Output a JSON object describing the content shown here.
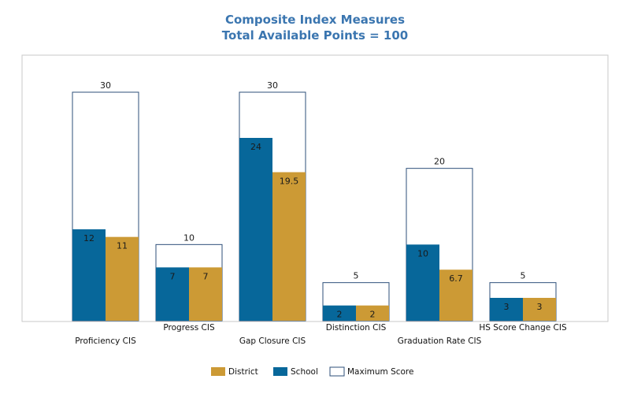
{
  "chart_data": {
    "type": "bar",
    "title": "Composite Index Measures",
    "subtitle": "Total Available Points = 100",
    "categories": [
      "Proficiency CIS",
      "Progress CIS",
      "Gap Closure CIS",
      "Distinction CIS",
      "Graduation Rate CIS",
      "HS Score Change CIS"
    ],
    "series": [
      {
        "name": "Maximum Score",
        "values": [
          30,
          10,
          30,
          5,
          20,
          5
        ],
        "color": "#ffffff",
        "stroke": "#2d4f7a"
      },
      {
        "name": "School",
        "values": [
          12,
          7,
          24,
          2,
          10,
          3
        ],
        "color": "#07679a"
      },
      {
        "name": "District",
        "values": [
          11,
          7,
          19.5,
          2,
          6.7,
          3
        ],
        "color": "#cc9a35"
      }
    ],
    "value_labels": {
      "Maximum Score": [
        "30",
        "10",
        "30",
        "5",
        "20",
        "5"
      ],
      "School": [
        "12",
        "7",
        "24",
        "2",
        "10",
        "3"
      ],
      "District": [
        "11",
        "7",
        "19.5",
        "2",
        "6.7",
        "3"
      ]
    },
    "legend": {
      "placement": "bottom",
      "order": [
        "District",
        "School",
        "Maximum Score"
      ]
    },
    "ylim": [
      0,
      30
    ],
    "grid": false,
    "title_color": "#3b76b0"
  }
}
